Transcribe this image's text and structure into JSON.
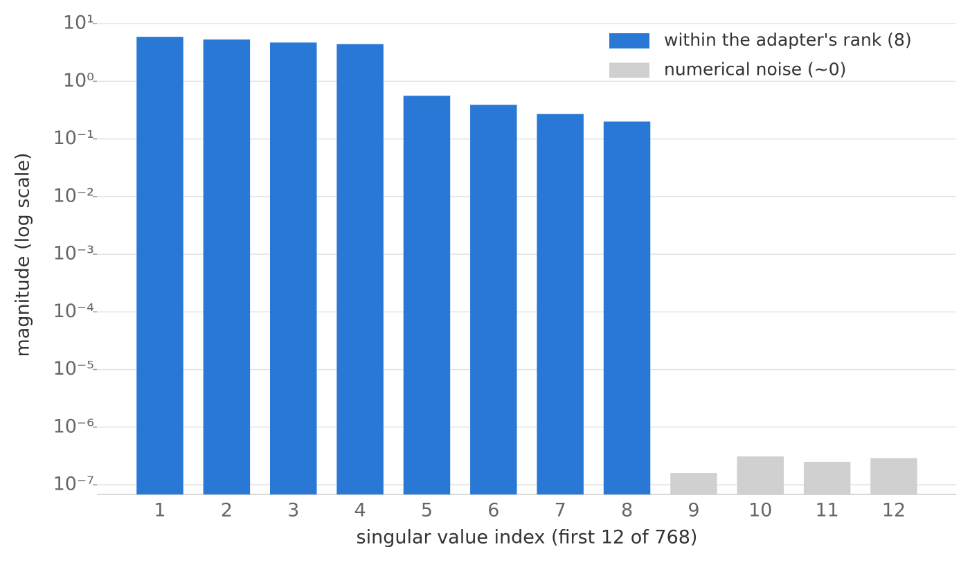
{
  "chart_data": {
    "type": "bar",
    "log_scale": true,
    "grid": true,
    "legend": "upper right",
    "xlabel": "singular value index (first 12 of 768)",
    "ylabel": "magnitude (log scale)",
    "categories": [
      "1",
      "2",
      "3",
      "4",
      "5",
      "6",
      "7",
      "8",
      "9",
      "10",
      "11",
      "12"
    ],
    "series": [
      {
        "name": "within the adapter's rank (8)",
        "color": "#2978d6",
        "values": [
          5.9,
          5.3,
          4.7,
          4.4,
          0.56,
          0.39,
          0.27,
          0.2,
          null,
          null,
          null,
          null
        ]
      },
      {
        "name": "numerical noise (~0)",
        "color": "#d0d0d0",
        "values": [
          null,
          null,
          null,
          null,
          null,
          null,
          null,
          null,
          1.6e-07,
          3.1e-07,
          2.5e-07,
          2.9e-07
        ]
      }
    ],
    "ylim": [
      6.8e-08,
      12
    ],
    "yticks": [
      {
        "value": 10,
        "label": "10¹"
      },
      {
        "value": 1,
        "label": "10⁰"
      },
      {
        "value": 0.1,
        "label": "10⁻¹"
      },
      {
        "value": 0.01,
        "label": "10⁻²"
      },
      {
        "value": 0.001,
        "label": "10⁻³"
      },
      {
        "value": 0.0001,
        "label": "10⁻⁴"
      },
      {
        "value": 1e-05,
        "label": "10⁻⁵"
      },
      {
        "value": 1e-06,
        "label": "10⁻⁶"
      },
      {
        "value": 1e-07,
        "label": "10⁻⁷"
      }
    ]
  }
}
